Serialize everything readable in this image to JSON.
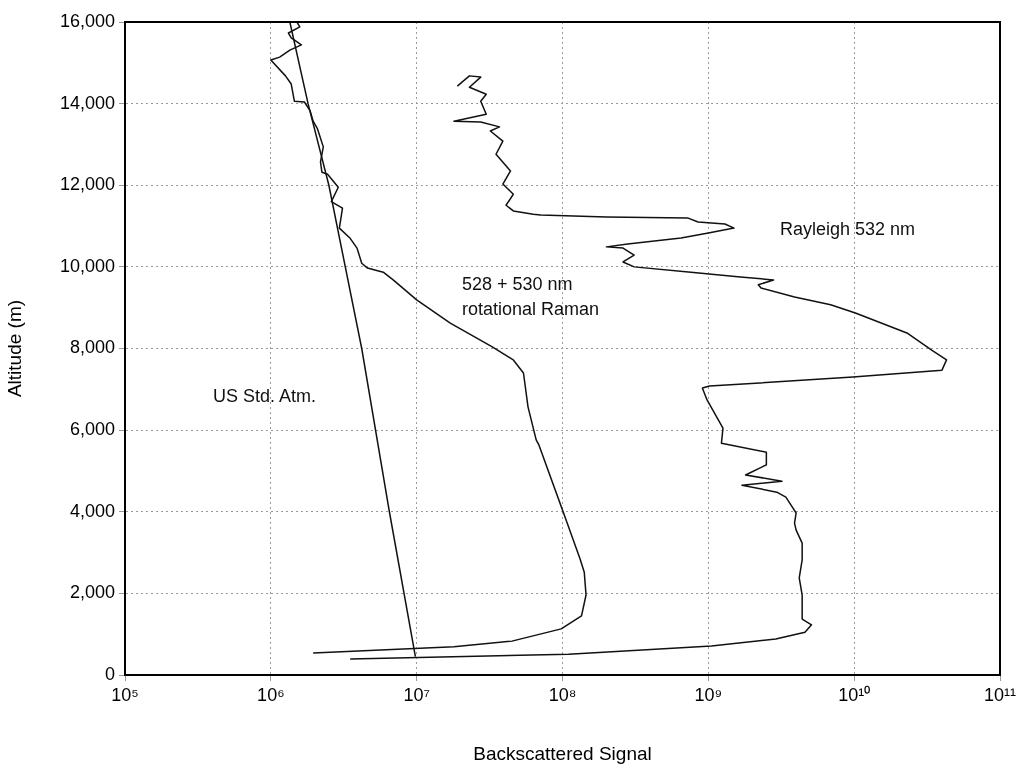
{
  "chart_data": {
    "type": "line",
    "xlabel": "Backscattered Signal",
    "ylabel": "Altitude (m)",
    "log": "x",
    "grid": true,
    "marker": "none",
    "line_style": "solid",
    "xlim": [
      100000.0,
      100000000000.0
    ],
    "xticks": [
      {
        "value": 100000.0,
        "label": "10⁵"
      },
      {
        "value": 1000000.0,
        "label": "10⁶"
      },
      {
        "value": 10000000.0,
        "label": "10⁷"
      },
      {
        "value": 100000000.0,
        "label": "10⁸"
      },
      {
        "value": 1000000000.0,
        "label": "10⁹"
      },
      {
        "value": 10000000000.0,
        "label": "10¹⁰"
      },
      {
        "value": 100000000000.0,
        "label": "10¹¹"
      }
    ],
    "ylim": [
      0,
      16000
    ],
    "yticks": [
      0,
      {
        "value": 2000,
        "label": "2,000"
      },
      {
        "value": 4000,
        "label": "4,000"
      },
      {
        "value": 6000,
        "label": "6,000"
      },
      {
        "value": 8000,
        "label": "8,000"
      },
      {
        "value": 10000,
        "label": "10,000"
      },
      {
        "value": 12000,
        "label": "12,000"
      },
      {
        "value": 14000,
        "label": "14,000"
      },
      {
        "value": 16000,
        "label": "16,000"
      }
    ],
    "series": [
      {
        "name": "US Std. Atm.",
        "color": "#111111",
        "x": [
          9800000.0,
          6500000.0,
          4200000.0,
          2500000.0,
          1800000.0,
          1350000.0
        ],
        "values": [
          450,
          4000,
          8000,
          12000,
          14000,
          16000
        ]
      },
      {
        "name": "528 + 530 nm rotational Raman",
        "color": "#111111",
        "x": [
          1950000.0,
          18000000.0,
          45000000.0,
          98000000.0,
          135000000.0,
          145000000.0,
          141000000.0,
          132000000.0,
          100000000.0,
          69000000.0,
          66000000.0,
          58000000.0,
          54000000.0,
          46000000.0,
          33000000.0,
          17000000.0,
          10000000.0,
          6900000.0,
          5900000.0,
          4600000.0,
          4200000.0,
          3900000.0,
          3500000.0,
          2950000.0,
          3100000.0,
          2600000.0,
          2900000.0,
          2450000.0,
          2240000.0,
          2190000.0,
          2290000.0,
          2090000.0,
          1950000.0,
          1860000.0,
          1700000.0,
          1450000.0,
          1380000.0,
          1260000.0,
          1000000.0,
          1150000.0,
          1350000.0,
          1620000.0,
          1380000.0,
          1320000.0,
          1580000.0,
          1510000.0
        ],
        "values": [
          540,
          690,
          830,
          1130,
          1450,
          1960,
          2520,
          2840,
          4040,
          5630,
          5760,
          6570,
          7400,
          7720,
          8040,
          8620,
          9190,
          9680,
          9870,
          9970,
          10090,
          10460,
          10700,
          10950,
          11440,
          11600,
          11950,
          12270,
          12320,
          12570,
          12940,
          13380,
          13570,
          13820,
          14040,
          14060,
          14480,
          14680,
          15070,
          15140,
          15310,
          15440,
          15610,
          15730,
          15880,
          16000
        ]
      },
      {
        "name": "Rayleigh 532 nm",
        "color": "#111111",
        "x": [
          3500000.0,
          110000000.0,
          1050000000.0,
          2900000000.0,
          4600000000.0,
          5100000000.0,
          4400000000.0,
          4400000000.0,
          4200000000.0,
          4400000000.0,
          4400000000.0,
          4000000000.0,
          3900000000.0,
          4000000000.0,
          3400000000.0,
          2950000000.0,
          1700000000.0,
          3200000000.0,
          1800000000.0,
          2500000000.0,
          2500000000.0,
          1230000000.0,
          1260000000.0,
          980000000.0,
          910000000.0,
          1020000000.0,
          9800000000.0,
          40000000000.0,
          43000000000.0,
          34000000000.0,
          23000000000.0,
          10200000000.0,
          6900000000.0,
          3900000000.0,
          2300000000.0,
          2200000000.0,
          2800000000.0,
          1660000000.0,
          760000000.0,
          310000000.0,
          260000000.0,
          310000000.0,
          260000000.0,
          200000000.0,
          280000000.0,
          650000000.0,
          1000000000.0,
          1500000000.0,
          1300000000.0,
          850000000.0,
          720000000.0,
          200000000.0,
          71000000.0,
          63000000.0,
          46000000.0,
          41000000.0,
          46000000.0,
          39000000.0,
          44000000.0,
          35000000.0,
          39000000.0,
          32000000.0,
          37000000.0,
          27500000.0,
          18000000.0,
          30000000.0,
          27500000.0,
          30000000.0,
          23000000.0,
          27500000.0,
          23000000.0,
          19000000.0
        ],
        "values": [
          390,
          510,
          710,
          880,
          1050,
          1230,
          1370,
          1960,
          2380,
          2820,
          3230,
          3550,
          3720,
          3970,
          4360,
          4480,
          4650,
          4750,
          4900,
          5150,
          5460,
          5680,
          6050,
          6740,
          7030,
          7080,
          7300,
          7470,
          7720,
          7960,
          8380,
          8870,
          9070,
          9260,
          9480,
          9560,
          9680,
          9750,
          9870,
          10000,
          10120,
          10290,
          10460,
          10490,
          10560,
          10710,
          10830,
          10950,
          11050,
          11100,
          11200,
          11220,
          11270,
          11290,
          11370,
          11510,
          11780,
          12030,
          12350,
          12760,
          13080,
          13330,
          13430,
          13550,
          13570,
          13740,
          14060,
          14230,
          14400,
          14650,
          14680,
          14430
        ]
      }
    ]
  }
}
